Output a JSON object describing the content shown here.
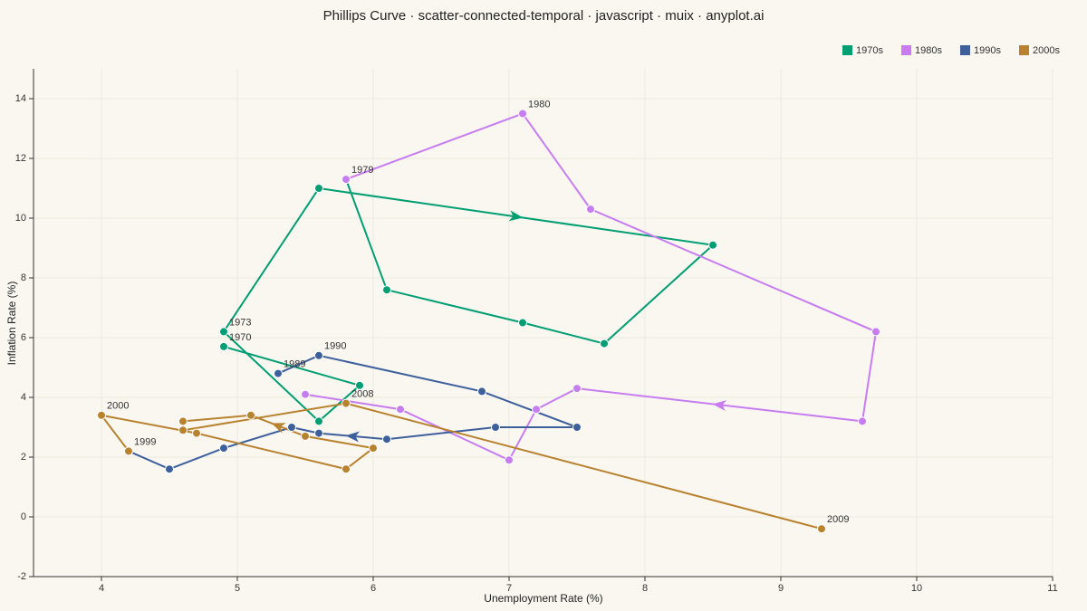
{
  "chart_data": {
    "type": "scatter-connected",
    "title": "Phillips Curve · scatter-connected-temporal · javascript · muix · anyplot.ai",
    "x_label": "Unemployment Rate (%)",
    "y_label": "Inflation Rate (%)",
    "xlim": [
      3.5,
      11
    ],
    "xticks": [
      4,
      5,
      6,
      7,
      8,
      9,
      10,
      11
    ],
    "ylim": [
      -2,
      15
    ],
    "yticks": [
      -2,
      0,
      2,
      4,
      6,
      8,
      10,
      12,
      14
    ],
    "grid": true,
    "legend": "top-right",
    "series": [
      {
        "name": "1970s",
        "color": "#009e73",
        "x": [
          4.9,
          5.9,
          5.6,
          4.9,
          5.6,
          8.5,
          7.7,
          7.1,
          6.1,
          5.8
        ],
        "values": [
          5.7,
          4.4,
          3.2,
          6.2,
          11.0,
          9.1,
          5.8,
          6.5,
          7.6,
          11.3
        ],
        "point_labels": [
          "1970",
          null,
          null,
          "1973",
          null,
          null,
          null,
          null,
          null,
          "1979"
        ]
      },
      {
        "name": "1980s",
        "color": "#c77cf0",
        "x": [
          5.8,
          7.1,
          7.6,
          9.7,
          9.6,
          7.5,
          7.2,
          7.0,
          6.2,
          5.5
        ],
        "values": [
          11.3,
          13.5,
          10.3,
          6.2,
          3.2,
          4.3,
          3.6,
          1.9,
          3.6,
          4.1
        ],
        "point_labels": [
          null,
          "1980",
          null,
          null,
          null,
          null,
          null,
          null,
          null,
          null
        ]
      },
      {
        "name": "1990s",
        "color": "#3d5f9c",
        "x": [
          5.3,
          5.6,
          6.8,
          7.5,
          6.9,
          6.1,
          5.6,
          5.4,
          4.9,
          4.5,
          4.2
        ],
        "values": [
          4.8,
          5.4,
          4.2,
          3.0,
          3.0,
          2.6,
          2.8,
          3.0,
          2.3,
          1.6,
          2.2
        ],
        "point_labels": [
          "1989",
          "1990",
          null,
          null,
          null,
          null,
          null,
          null,
          null,
          null,
          "1999"
        ]
      },
      {
        "name": "2000s",
        "color": "#b8822f",
        "x": [
          4.2,
          4.0,
          4.7,
          5.8,
          6.0,
          5.5,
          5.1,
          4.6,
          4.6,
          5.8,
          9.3
        ],
        "values": [
          2.2,
          3.4,
          2.8,
          1.6,
          2.3,
          2.7,
          3.4,
          3.2,
          2.9,
          3.8,
          -0.4
        ],
        "point_labels": [
          null,
          "2000",
          null,
          null,
          null,
          null,
          null,
          null,
          null,
          "2008",
          "2009"
        ]
      }
    ]
  }
}
